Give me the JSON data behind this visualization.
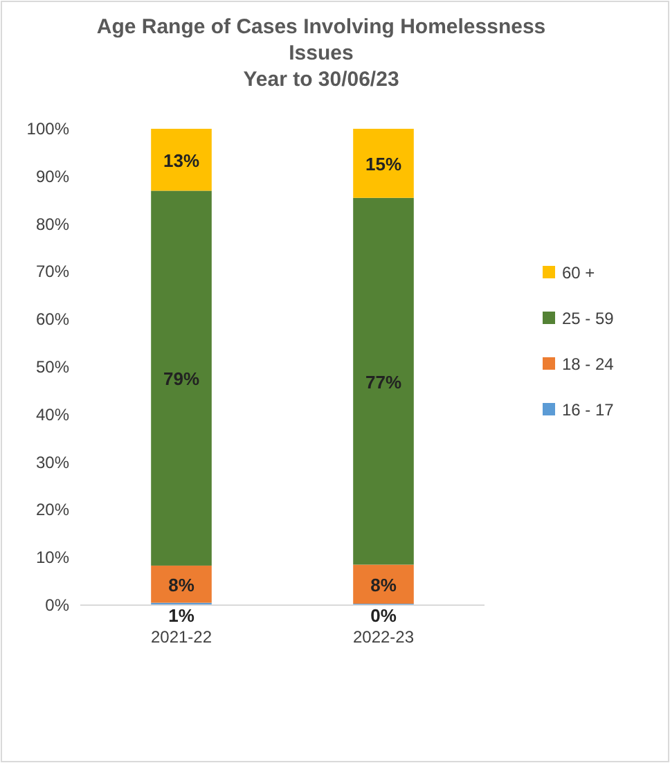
{
  "chart_data": {
    "type": "bar",
    "stacked": true,
    "title": "Age Range of Cases Involving Homelessness Issues",
    "subtitle": "Year to 30/06/23",
    "categories": [
      "2021-22",
      "2022-23"
    ],
    "series": [
      {
        "name": "16 - 17",
        "color": "#5b9bd5",
        "values": [
          0.5,
          0.3
        ],
        "value_labels": [
          "1%",
          "0%"
        ]
      },
      {
        "name": "18 - 24",
        "color": "#ed7d31",
        "values": [
          7.8,
          8.2
        ],
        "value_labels": [
          "8%",
          "8%"
        ]
      },
      {
        "name": "25 - 59",
        "color": "#548235",
        "values": [
          78.7,
          77
        ],
        "value_labels": [
          "79%",
          "77%"
        ]
      },
      {
        "name": "60 +",
        "color": "#ffc000",
        "values": [
          13,
          14.5
        ],
        "value_labels": [
          "13%",
          "15%"
        ]
      }
    ],
    "ylim": [
      0,
      100
    ],
    "yticks": [
      {
        "value": 0,
        "label": "0%"
      },
      {
        "value": 10,
        "label": "10%"
      },
      {
        "value": 20,
        "label": "20%"
      },
      {
        "value": 30,
        "label": "30%"
      },
      {
        "value": 40,
        "label": "40%"
      },
      {
        "value": 50,
        "label": "50%"
      },
      {
        "value": 60,
        "label": "60%"
      },
      {
        "value": 70,
        "label": "70%"
      },
      {
        "value": 80,
        "label": "80%"
      },
      {
        "value": 90,
        "label": "90%"
      },
      {
        "value": 100,
        "label": "100%"
      }
    ],
    "legend": "right"
  }
}
